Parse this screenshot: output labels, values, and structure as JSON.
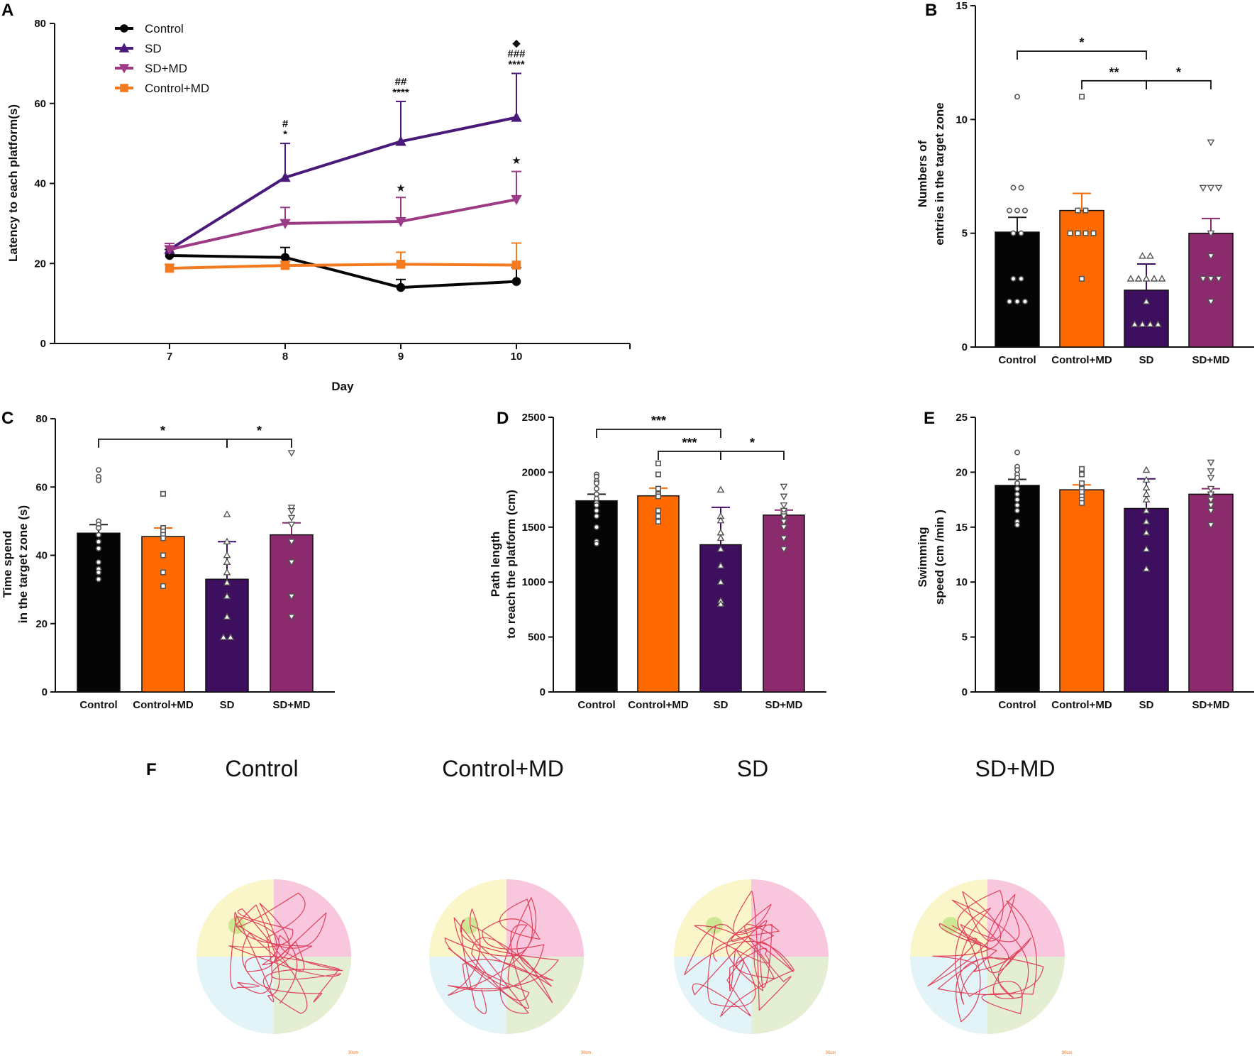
{
  "panels": {
    "A": "A",
    "B": "B",
    "C": "C",
    "D": "D",
    "E": "E",
    "F": "F"
  },
  "colors": {
    "Control": "#050505",
    "Control+MD": "#ff6a00",
    "SD": "#3e0f5e",
    "SD+MD": "#8b2a6c",
    "SD_line": "#4a1a7a",
    "SDMD_line": "#9c3a86",
    "Control+MD_line": "#f47a20"
  },
  "chart_data": [
    {
      "id": "A",
      "type": "line",
      "title": "",
      "xlabel": "Day",
      "ylabel": "Latency to each platform(s)",
      "x": [
        "7",
        "8",
        "9",
        "10"
      ],
      "ylim": [
        0,
        80
      ],
      "yticks": [
        0,
        20,
        40,
        60,
        80
      ],
      "series": [
        {
          "name": "Control",
          "values": [
            22,
            21.5,
            14,
            15.5
          ],
          "err": [
            1.5,
            2.5,
            2,
            3.5
          ],
          "marker": "circle"
        },
        {
          "name": "SD",
          "values": [
            23.5,
            41.5,
            50.5,
            56.5
          ],
          "err": [
            1.5,
            8.5,
            10,
            11
          ],
          "marker": "triangle-up"
        },
        {
          "name": "SD+MD",
          "values": [
            23.5,
            30,
            30.5,
            36
          ],
          "err": [
            1.5,
            4,
            6,
            7
          ],
          "marker": "triangle-down"
        },
        {
          "name": "Control+MD",
          "values": [
            18.8,
            19.5,
            19.8,
            19.6
          ],
          "err": [
            1,
            1,
            3,
            5.5
          ],
          "marker": "square"
        }
      ],
      "legend_order": [
        "Control",
        "SD",
        "SD+MD",
        "Control+MD"
      ],
      "annotations": [
        {
          "x": "8",
          "y_from": 50,
          "lines": [
            "#",
            "*"
          ]
        },
        {
          "x": "9",
          "y_from": 60.5,
          "lines": [
            "##",
            "****"
          ]
        },
        {
          "x": "10",
          "y_from": 67.5,
          "lines": [
            "◆",
            "###",
            "****"
          ]
        },
        {
          "x": "9",
          "y_from": 36.5,
          "lines": [
            "★"
          ]
        },
        {
          "x": "10",
          "y_from": 43.5,
          "lines": [
            "★"
          ]
        }
      ]
    },
    {
      "id": "B",
      "type": "bar",
      "ylabel_lines": [
        "Numbers of",
        "entries in the target zone"
      ],
      "categories": [
        "Control",
        "Control+MD",
        "SD",
        "SD+MD"
      ],
      "values": [
        5.05,
        6.0,
        2.5,
        5.0
      ],
      "err": [
        0.65,
        0.75,
        1.15,
        0.65
      ],
      "ylim": [
        0,
        15
      ],
      "yticks": [
        0,
        5,
        10,
        15
      ],
      "points": [
        [
          11,
          7,
          7,
          6,
          6,
          6,
          5,
          5,
          3,
          3,
          2,
          2,
          2
        ],
        [
          11,
          6,
          6,
          5,
          5,
          5,
          5,
          3
        ],
        [
          4,
          4,
          3,
          3,
          3,
          3,
          3,
          2,
          1,
          1,
          1,
          1
        ],
        [
          9,
          7,
          7,
          7,
          5,
          4,
          3,
          3,
          3,
          2
        ]
      ],
      "markers": [
        "circle",
        "square",
        "triangle-up",
        "triangle-down"
      ],
      "significance": [
        {
          "from": 0,
          "to": 2,
          "label": "*",
          "y": 13
        },
        {
          "from": 1,
          "to": 2,
          "label": "**",
          "y": 11.7
        },
        {
          "from": 2,
          "to": 3,
          "label": "*",
          "y": 11.7
        }
      ]
    },
    {
      "id": "C",
      "type": "bar",
      "ylabel_lines": [
        "Time spend",
        "in the target zone (s)"
      ],
      "categories": [
        "Control",
        "Control+MD",
        "SD",
        "SD+MD"
      ],
      "values": [
        46.5,
        45.5,
        33,
        46
      ],
      "err": [
        2.5,
        2.5,
        11,
        3.5
      ],
      "ylim": [
        0,
        80
      ],
      "yticks": [
        0,
        20,
        40,
        60,
        80
      ],
      "points": [
        [
          65,
          63,
          62,
          50,
          49,
          48,
          46,
          44,
          42,
          38,
          36,
          35,
          33
        ],
        [
          58,
          48,
          47,
          46,
          45,
          40,
          35,
          31
        ],
        [
          52,
          44,
          40,
          38,
          35,
          32,
          28,
          22,
          16,
          16
        ],
        [
          70,
          54,
          53,
          51,
          49,
          44,
          38,
          28,
          22
        ]
      ],
      "markers": [
        "circle",
        "square",
        "triangle-up",
        "triangle-down"
      ],
      "significance": [
        {
          "from": 0,
          "to": 2,
          "label": "*",
          "y": 74
        },
        {
          "from": 2,
          "to": 3,
          "label": "*",
          "y": 74
        }
      ]
    },
    {
      "id": "D",
      "type": "bar",
      "ylabel_lines": [
        "Path length",
        "to reach  the platform (cm)"
      ],
      "categories": [
        "Control",
        "Control+MD",
        "SD",
        "SD+MD"
      ],
      "values": [
        1740,
        1785,
        1340,
        1610
      ],
      "err": [
        60,
        70,
        340,
        45
      ],
      "ylim": [
        0,
        2500
      ],
      "yticks": [
        0,
        500,
        1000,
        1500,
        2000,
        2500
      ],
      "points": [
        [
          1980,
          1960,
          1920,
          1900,
          1850,
          1800,
          1760,
          1720,
          1700,
          1650,
          1600,
          1500,
          1370,
          1350
        ],
        [
          2080,
          1980,
          1850,
          1800,
          1780,
          1650,
          1600,
          1550
        ],
        [
          1840,
          1600,
          1560,
          1450,
          1400,
          1300,
          1150,
          1000,
          830,
          800
        ],
        [
          1870,
          1780,
          1700,
          1650,
          1620,
          1600,
          1550,
          1500,
          1400,
          1300
        ]
      ],
      "markers": [
        "circle",
        "square",
        "triangle-up",
        "triangle-down"
      ],
      "significance": [
        {
          "from": 0,
          "to": 2,
          "label": "***",
          "y": 2390
        },
        {
          "from": 1,
          "to": 2,
          "label": "***",
          "y": 2190
        },
        {
          "from": 2,
          "to": 3,
          "label": "*",
          "y": 2190
        }
      ]
    },
    {
      "id": "E",
      "type": "bar",
      "ylabel_lines": [
        "Swimming",
        "speed (cm /min )"
      ],
      "categories": [
        "Control",
        "Control+MD",
        "SD",
        "SD+MD"
      ],
      "values": [
        18.8,
        18.4,
        16.7,
        18.0
      ],
      "err": [
        0.55,
        0.45,
        2.7,
        0.5
      ],
      "ylim": [
        0,
        25
      ],
      "yticks": [
        0,
        5,
        10,
        15,
        20,
        25
      ],
      "points": [
        [
          21.8,
          20.5,
          20.2,
          19.8,
          19.5,
          19,
          18.5,
          18,
          17.5,
          17,
          16.5,
          15.5,
          15.2
        ],
        [
          20.3,
          19.8,
          19,
          18.5,
          18.2,
          17.8,
          17.5,
          17.2
        ],
        [
          20.2,
          19.3,
          18.6,
          18,
          17.5,
          16.5,
          15.5,
          14.5,
          13,
          11.2
        ],
        [
          20.9,
          20.1,
          19.5,
          18.5,
          18,
          17.5,
          17,
          16.5,
          15.2
        ]
      ],
      "markers": [
        "circle",
        "square",
        "triangle-up",
        "triangle-down"
      ],
      "significance": []
    }
  ],
  "tracks": {
    "titles": [
      "Control",
      "Control+MD",
      "SD",
      "SD+MD"
    ],
    "scale_label": "30cm"
  }
}
